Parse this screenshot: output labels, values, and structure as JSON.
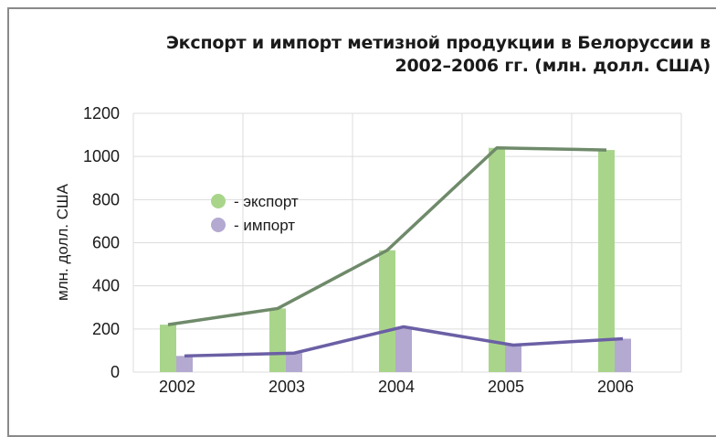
{
  "chart_data": {
    "type": "bar",
    "title_line1": "Экспорт и импорт метизной продукции в Белоруссии в",
    "title_line2": "2002–2006 гг. (млн. долл. США)",
    "ylabel": "млн. долл. США",
    "xlabel": "",
    "ylim": [
      0,
      1200
    ],
    "yticks": [
      0,
      200,
      400,
      600,
      800,
      1000,
      1200
    ],
    "categories": [
      "2002",
      "2003",
      "2004",
      "2005",
      "2006"
    ],
    "grid": true,
    "legend_position": "left-middle",
    "series": [
      {
        "name": "- экспорт",
        "values": [
          220,
          295,
          565,
          1040,
          1030
        ],
        "bar_color": "#a9d58b",
        "line_color": "#6f8a6a"
      },
      {
        "name": "- импорт",
        "values": [
          75,
          88,
          210,
          125,
          155
        ],
        "bar_color": "#b3a9d1",
        "line_color": "#6b5fa5"
      }
    ]
  }
}
